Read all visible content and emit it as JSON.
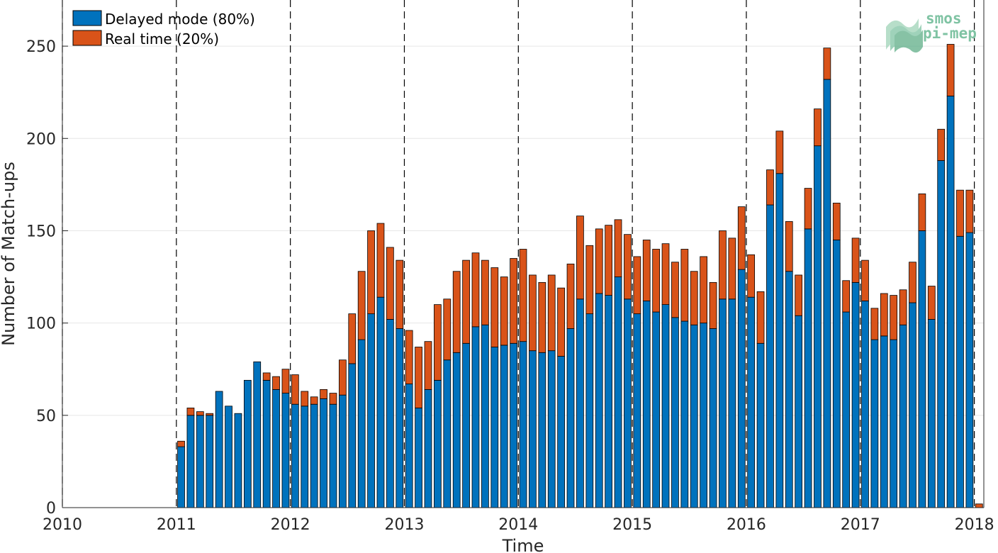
{
  "chart_data": {
    "type": "bar",
    "stacked": true,
    "xlabel": "Time",
    "ylabel": "Number of Match-ups",
    "xlim": [
      2010,
      2018.0833
    ],
    "ylim": [
      0,
      275
    ],
    "x_ticks": [
      "2010",
      "2011",
      "2012",
      "2013",
      "2014",
      "2015",
      "2016",
      "2017",
      "2018"
    ],
    "y_ticks": [
      0,
      50,
      100,
      150,
      200,
      250
    ],
    "grid": true,
    "legend_position": "top-left",
    "months": [
      "2011-01",
      "2011-02",
      "2011-03",
      "2011-04",
      "2011-05",
      "2011-06",
      "2011-07",
      "2011-08",
      "2011-09",
      "2011-10",
      "2011-11",
      "2011-12",
      "2012-01",
      "2012-02",
      "2012-03",
      "2012-04",
      "2012-05",
      "2012-06",
      "2012-07",
      "2012-08",
      "2012-09",
      "2012-10",
      "2012-11",
      "2012-12",
      "2013-01",
      "2013-02",
      "2013-03",
      "2013-04",
      "2013-05",
      "2013-06",
      "2013-07",
      "2013-08",
      "2013-09",
      "2013-10",
      "2013-11",
      "2013-12",
      "2014-01",
      "2014-02",
      "2014-03",
      "2014-04",
      "2014-05",
      "2014-06",
      "2014-07",
      "2014-08",
      "2014-09",
      "2014-10",
      "2014-11",
      "2014-12",
      "2015-01",
      "2015-02",
      "2015-03",
      "2015-04",
      "2015-05",
      "2015-06",
      "2015-07",
      "2015-08",
      "2015-09",
      "2015-10",
      "2015-11",
      "2015-12",
      "2016-01",
      "2016-02",
      "2016-03",
      "2016-04",
      "2016-05",
      "2016-06",
      "2016-07",
      "2016-08",
      "2016-09",
      "2016-10",
      "2016-11",
      "2016-12",
      "2017-01",
      "2017-02",
      "2017-03",
      "2017-04",
      "2017-05",
      "2017-06",
      "2017-07",
      "2017-08",
      "2017-09",
      "2017-10",
      "2017-11",
      "2017-12",
      "2018-01"
    ],
    "series": [
      {
        "name": "Delayed mode (80%)",
        "color": "#0072BD",
        "values": [
          33,
          50,
          50,
          50,
          63,
          55,
          51,
          69,
          79,
          69,
          64,
          62,
          56,
          55,
          56,
          59,
          56,
          61,
          78,
          91,
          105,
          114,
          102,
          97,
          67,
          54,
          64,
          69,
          80,
          84,
          89,
          98,
          99,
          87,
          88,
          89,
          90,
          85,
          84,
          85,
          82,
          97,
          113,
          105,
          116,
          115,
          125,
          113,
          105,
          112,
          106,
          110,
          103,
          101,
          99,
          100,
          97,
          113,
          113,
          129,
          114,
          89,
          164,
          181,
          128,
          104,
          151,
          196,
          232,
          145,
          106,
          122,
          112,
          91,
          93,
          91,
          99,
          111,
          150,
          102,
          188,
          223,
          147,
          149,
          0
        ]
      },
      {
        "name": "Real time (20%)",
        "color": "#D95319",
        "values": [
          3,
          4,
          2,
          1,
          0,
          0,
          0,
          0,
          0,
          4,
          7,
          13,
          16,
          8,
          4,
          5,
          6,
          19,
          27,
          37,
          45,
          40,
          39,
          37,
          29,
          33,
          26,
          41,
          33,
          44,
          45,
          40,
          35,
          43,
          37,
          46,
          50,
          41,
          38,
          41,
          37,
          35,
          45,
          37,
          35,
          38,
          31,
          35,
          31,
          33,
          34,
          33,
          30,
          39,
          29,
          36,
          25,
          37,
          33,
          34,
          23,
          28,
          19,
          23,
          27,
          22,
          22,
          20,
          17,
          20,
          17,
          24,
          22,
          17,
          23,
          24,
          19,
          22,
          20,
          18,
          17,
          28,
          25,
          23,
          2
        ]
      }
    ]
  },
  "legend": {
    "items": [
      {
        "label": "Delayed mode (80%)",
        "color": "#0072BD"
      },
      {
        "label": "Real time (20%)",
        "color": "#D95319"
      }
    ]
  },
  "logo": {
    "line1": "smos",
    "line2": "pi-mep",
    "color": "#7fc3a3",
    "icon": "waves-icon"
  }
}
